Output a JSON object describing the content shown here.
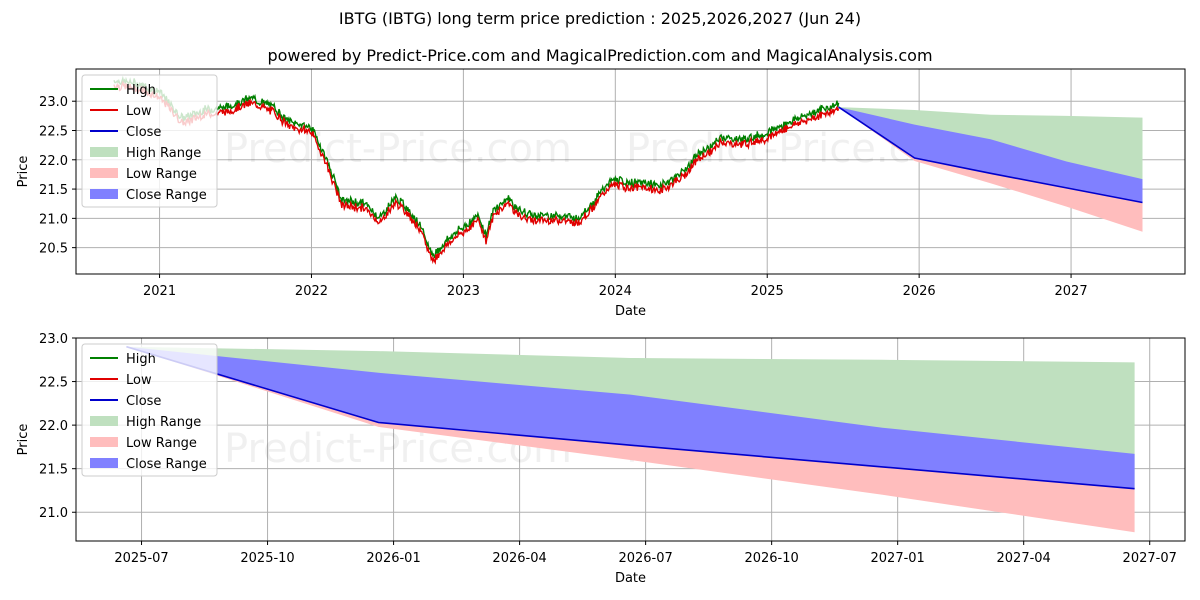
{
  "title_line1": "IBTG (IBTG) long term price prediction : 2025,2026,2027 (Jun 24)",
  "title_line2": "powered by Predict-Price.com and MagicalPrediction.com and MagicalAnalysis.com",
  "watermark": "Predict-Price.com",
  "colors": {
    "high": "#008000",
    "low": "#e00000",
    "close": "#0000cc",
    "high_range": "#bfe0bf",
    "low_range": "#ffbdbd",
    "close_range": "#8080ff",
    "grid": "#b0b0b0"
  },
  "legend": [
    "High",
    "Low",
    "Close",
    "High Range",
    "Low Range",
    "Close Range"
  ],
  "chart_data": [
    {
      "type": "line",
      "panel": "top",
      "xlabel": "Date",
      "ylabel": "Price",
      "xlim": [
        2020.45,
        2027.75
      ],
      "ylim": [
        20.05,
        23.55
      ],
      "x_ticks": [
        2021,
        2022,
        2023,
        2024,
        2025,
        2026,
        2027
      ],
      "x_tick_labels": [
        "2021",
        "2022",
        "2023",
        "2024",
        "2025",
        "2026",
        "2027"
      ],
      "y_ticks": [
        20.5,
        21.0,
        21.5,
        22.0,
        22.5,
        23.0
      ],
      "y_tick_labels": [
        "20.5",
        "21.0",
        "21.5",
        "22.0",
        "22.5",
        "23.0"
      ],
      "history_anchors": {
        "x": [
          2020.7,
          2020.85,
          2021.0,
          2021.15,
          2021.3,
          2021.45,
          2021.6,
          2021.75,
          2021.85,
          2022.0,
          2022.1,
          2022.2,
          2022.35,
          2022.45,
          2022.55,
          2022.6,
          2022.7,
          2022.8,
          2022.9,
          2023.0,
          2023.1,
          2023.15,
          2023.2,
          2023.3,
          2023.35,
          2023.45,
          2023.55,
          2023.65,
          2023.75,
          2023.85,
          2023.95,
          2024.0,
          2024.1,
          2024.2,
          2024.3,
          2024.45,
          2024.55,
          2024.65,
          2024.7,
          2024.75,
          2024.85,
          2025.0,
          2025.15,
          2025.3,
          2025.47
        ],
        "y": [
          23.3,
          23.25,
          23.1,
          22.65,
          22.8,
          22.85,
          23.0,
          22.85,
          22.6,
          22.5,
          21.95,
          21.25,
          21.2,
          20.95,
          21.3,
          21.2,
          20.9,
          20.3,
          20.6,
          20.8,
          21.0,
          20.65,
          21.1,
          21.3,
          21.1,
          21.0,
          21.0,
          21.0,
          20.95,
          21.2,
          21.55,
          21.6,
          21.55,
          21.55,
          21.5,
          21.75,
          22.05,
          22.2,
          22.35,
          22.3,
          22.3,
          22.4,
          22.6,
          22.75,
          22.9
        ]
      },
      "forecast": {
        "x": [
          2025.47,
          2025.97,
          2026.47,
          2026.97,
          2027.47
        ],
        "close": [
          22.9,
          22.03,
          21.77,
          21.52,
          21.27
        ],
        "high_range": [
          22.9,
          22.85,
          22.77,
          22.75,
          22.72
        ],
        "close_range_upper": [
          22.9,
          22.6,
          22.35,
          21.97,
          21.67
        ],
        "low_range": [
          22.9,
          21.98,
          21.6,
          21.2,
          20.77
        ]
      }
    },
    {
      "type": "line",
      "panel": "bottom",
      "xlabel": "Date",
      "ylabel": "Price",
      "xlim": [
        2025.37,
        2027.57
      ],
      "ylim": [
        20.67,
        23.0
      ],
      "x_ticks": [
        2025.5,
        2025.75,
        2026.0,
        2026.25,
        2026.5,
        2026.75,
        2027.0,
        2027.25,
        2027.5
      ],
      "x_tick_labels": [
        "2025-07",
        "2025-10",
        "2026-01",
        "2026-04",
        "2026-07",
        "2026-10",
        "2027-01",
        "2027-04",
        "2027-07"
      ],
      "y_ticks": [
        21.0,
        21.5,
        22.0,
        22.5,
        23.0
      ],
      "y_tick_labels": [
        "21.0",
        "21.5",
        "22.0",
        "22.5",
        "23.0"
      ],
      "forecast": {
        "x": [
          2025.47,
          2025.97,
          2026.47,
          2026.97,
          2027.47
        ],
        "close": [
          22.9,
          22.03,
          21.77,
          21.52,
          21.27
        ],
        "high_range": [
          22.9,
          22.85,
          22.77,
          22.75,
          22.72
        ],
        "close_range_upper": [
          22.9,
          22.6,
          22.35,
          21.97,
          21.67
        ],
        "low_range": [
          22.9,
          21.98,
          21.6,
          21.2,
          20.77
        ]
      }
    }
  ]
}
